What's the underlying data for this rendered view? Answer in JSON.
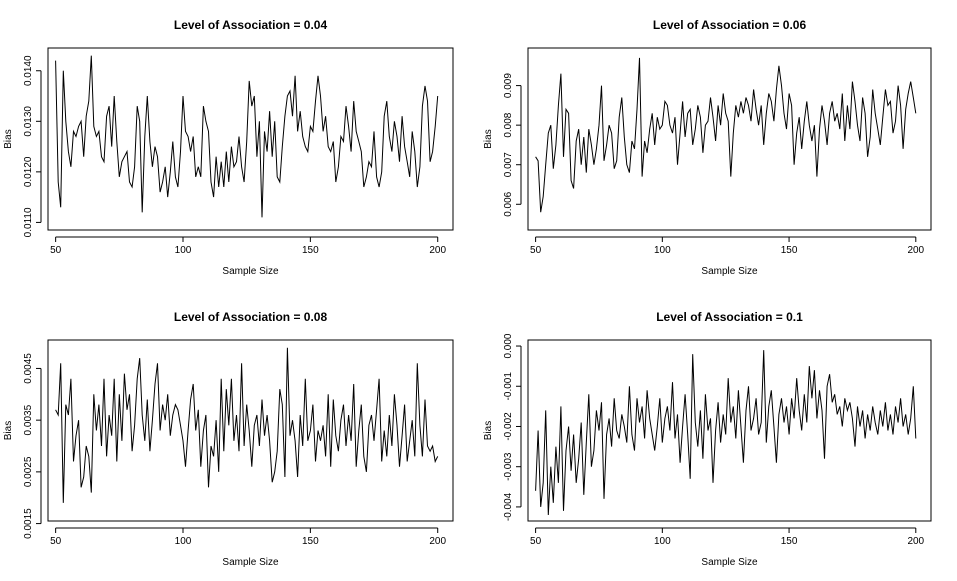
{
  "chart_data": [
    {
      "type": "line",
      "title": "Level of Association = 0.04",
      "xlabel": "Sample Size",
      "ylabel": "Bias",
      "xlim": [
        47,
        206
      ],
      "ylim": [
        0.01085,
        0.01445
      ],
      "xticks": [
        50,
        100,
        150,
        200
      ],
      "yticks": [
        0.011,
        0.012,
        0.013,
        0.014
      ],
      "ytick_labels": [
        "0.0110",
        "0.0120",
        "0.0130",
        "0.0140"
      ],
      "x": [
        50,
        51,
        52,
        53,
        54,
        55,
        56,
        57,
        58,
        59,
        60,
        61,
        62,
        63,
        64,
        65,
        66,
        67,
        68,
        69,
        70,
        71,
        72,
        73,
        74,
        75,
        76,
        77,
        78,
        79,
        80,
        81,
        82,
        83,
        84,
        85,
        86,
        87,
        88,
        89,
        90,
        91,
        92,
        93,
        94,
        95,
        96,
        97,
        98,
        99,
        100,
        101,
        102,
        103,
        104,
        105,
        106,
        107,
        108,
        109,
        110,
        111,
        112,
        113,
        114,
        115,
        116,
        117,
        118,
        119,
        120,
        121,
        122,
        123,
        124,
        125,
        126,
        127,
        128,
        129,
        130,
        131,
        132,
        133,
        134,
        135,
        136,
        137,
        138,
        139,
        140,
        141,
        142,
        143,
        144,
        145,
        146,
        147,
        148,
        149,
        150,
        151,
        152,
        153,
        154,
        155,
        156,
        157,
        158,
        159,
        160,
        161,
        162,
        163,
        164,
        165,
        166,
        167,
        168,
        169,
        170,
        171,
        172,
        173,
        174,
        175,
        176,
        177,
        178,
        179,
        180,
        181,
        182,
        183,
        184,
        185,
        186,
        187,
        188,
        189,
        190,
        191,
        192,
        193,
        194,
        195,
        196,
        197,
        198,
        199,
        200
      ],
      "y": [
        0.0142,
        0.0118,
        0.0113,
        0.014,
        0.013,
        0.0124,
        0.0121,
        0.0128,
        0.0127,
        0.0129,
        0.013,
        0.0123,
        0.0131,
        0.0134,
        0.0143,
        0.0129,
        0.0127,
        0.0128,
        0.0123,
        0.0122,
        0.0131,
        0.0133,
        0.0125,
        0.0135,
        0.0126,
        0.0119,
        0.0122,
        0.0123,
        0.0124,
        0.0118,
        0.0117,
        0.0121,
        0.0133,
        0.013,
        0.0112,
        0.0127,
        0.0135,
        0.0126,
        0.0121,
        0.0125,
        0.0123,
        0.0116,
        0.0118,
        0.0121,
        0.0115,
        0.012,
        0.0126,
        0.0119,
        0.0117,
        0.0124,
        0.0135,
        0.0128,
        0.0127,
        0.0124,
        0.0127,
        0.0119,
        0.0121,
        0.0119,
        0.0133,
        0.013,
        0.0128,
        0.0118,
        0.0115,
        0.0123,
        0.0117,
        0.0122,
        0.0117,
        0.0124,
        0.0118,
        0.0125,
        0.0121,
        0.0122,
        0.0127,
        0.0121,
        0.0118,
        0.0126,
        0.0138,
        0.0133,
        0.0135,
        0.0123,
        0.013,
        0.0111,
        0.0128,
        0.0124,
        0.0132,
        0.0123,
        0.013,
        0.0119,
        0.0118,
        0.0125,
        0.0131,
        0.0135,
        0.0136,
        0.0131,
        0.0139,
        0.0128,
        0.0132,
        0.0127,
        0.0125,
        0.0124,
        0.0129,
        0.0128,
        0.0134,
        0.0139,
        0.0135,
        0.0128,
        0.0131,
        0.0125,
        0.0124,
        0.0126,
        0.0118,
        0.0121,
        0.0127,
        0.0126,
        0.0133,
        0.0129,
        0.0124,
        0.0134,
        0.0128,
        0.0126,
        0.0124,
        0.0117,
        0.0119,
        0.0122,
        0.0121,
        0.0128,
        0.0119,
        0.0117,
        0.012,
        0.0131,
        0.0134,
        0.0127,
        0.0124,
        0.013,
        0.0127,
        0.0122,
        0.0131,
        0.0125,
        0.0122,
        0.0119,
        0.0128,
        0.0124,
        0.0117,
        0.0121,
        0.0133,
        0.0137,
        0.0134,
        0.0122,
        0.0124,
        0.0129,
        0.0135
      ]
    },
    {
      "type": "line",
      "title": "Level of Association = 0.06",
      "xlabel": "Sample Size",
      "ylabel": "Bias",
      "xlim": [
        47,
        206
      ],
      "ylim": [
        0.00535,
        0.00995
      ],
      "xticks": [
        50,
        100,
        150,
        200
      ],
      "yticks": [
        0.006,
        0.007,
        0.008,
        0.009
      ],
      "ytick_labels": [
        "0.006",
        "0.007",
        "0.008",
        "0.009"
      ],
      "x": [
        50,
        51,
        52,
        53,
        54,
        55,
        56,
        57,
        58,
        59,
        60,
        61,
        62,
        63,
        64,
        65,
        66,
        67,
        68,
        69,
        70,
        71,
        72,
        73,
        74,
        75,
        76,
        77,
        78,
        79,
        80,
        81,
        82,
        83,
        84,
        85,
        86,
        87,
        88,
        89,
        90,
        91,
        92,
        93,
        94,
        95,
        96,
        97,
        98,
        99,
        100,
        101,
        102,
        103,
        104,
        105,
        106,
        107,
        108,
        109,
        110,
        111,
        112,
        113,
        114,
        115,
        116,
        117,
        118,
        119,
        120,
        121,
        122,
        123,
        124,
        125,
        126,
        127,
        128,
        129,
        130,
        131,
        132,
        133,
        134,
        135,
        136,
        137,
        138,
        139,
        140,
        141,
        142,
        143,
        144,
        145,
        146,
        147,
        148,
        149,
        150,
        151,
        152,
        153,
        154,
        155,
        156,
        157,
        158,
        159,
        160,
        161,
        162,
        163,
        164,
        165,
        166,
        167,
        168,
        169,
        170,
        171,
        172,
        173,
        174,
        175,
        176,
        177,
        178,
        179,
        180,
        181,
        182,
        183,
        184,
        185,
        186,
        187,
        188,
        189,
        190,
        191,
        192,
        193,
        194,
        195,
        196,
        197,
        198,
        199,
        200
      ],
      "y": [
        0.0072,
        0.0071,
        0.0058,
        0.0062,
        0.007,
        0.0078,
        0.008,
        0.0069,
        0.0075,
        0.0085,
        0.0093,
        0.0072,
        0.0084,
        0.0083,
        0.0066,
        0.0064,
        0.0076,
        0.0079,
        0.007,
        0.0077,
        0.0068,
        0.0079,
        0.0075,
        0.007,
        0.0074,
        0.008,
        0.009,
        0.0071,
        0.0075,
        0.008,
        0.0078,
        0.0069,
        0.0071,
        0.0082,
        0.0087,
        0.0077,
        0.007,
        0.0068,
        0.0076,
        0.0074,
        0.0084,
        0.0097,
        0.0067,
        0.0076,
        0.0073,
        0.0079,
        0.0083,
        0.0075,
        0.0082,
        0.0079,
        0.008,
        0.0086,
        0.0085,
        0.008,
        0.0078,
        0.0082,
        0.007,
        0.0078,
        0.0086,
        0.0077,
        0.0083,
        0.0084,
        0.0075,
        0.0079,
        0.0085,
        0.0082,
        0.0073,
        0.008,
        0.0081,
        0.0087,
        0.0082,
        0.0076,
        0.0085,
        0.008,
        0.0088,
        0.0083,
        0.0081,
        0.0067,
        0.0078,
        0.0085,
        0.0082,
        0.0086,
        0.0083,
        0.0087,
        0.0085,
        0.0081,
        0.0089,
        0.0084,
        0.008,
        0.0085,
        0.0075,
        0.0083,
        0.0088,
        0.0086,
        0.0081,
        0.0089,
        0.0095,
        0.009,
        0.0083,
        0.0079,
        0.0088,
        0.0085,
        0.007,
        0.0078,
        0.0082,
        0.0074,
        0.0081,
        0.0086,
        0.008,
        0.0076,
        0.008,
        0.0067,
        0.0079,
        0.0085,
        0.0081,
        0.0075,
        0.0083,
        0.0086,
        0.0081,
        0.0083,
        0.0079,
        0.0088,
        0.0076,
        0.0085,
        0.0079,
        0.0091,
        0.0086,
        0.008,
        0.0076,
        0.0087,
        0.0083,
        0.0072,
        0.0077,
        0.0089,
        0.0083,
        0.0079,
        0.0075,
        0.0082,
        0.0089,
        0.0085,
        0.0086,
        0.0078,
        0.0081,
        0.009,
        0.0085,
        0.0074,
        0.0084,
        0.0088,
        0.0091,
        0.0087,
        0.0083
      ]
    },
    {
      "type": "line",
      "title": "Level of Association = 0.08",
      "xlabel": "Sample Size",
      "ylabel": "Bias",
      "xlim": [
        47,
        206
      ],
      "ylim": [
        0.00155,
        0.00505
      ],
      "xticks": [
        50,
        100,
        150,
        200
      ],
      "yticks": [
        0.0015,
        0.0025,
        0.0035,
        0.0045
      ],
      "ytick_labels": [
        "0.0015",
        "0.0025",
        "0.0035",
        "0.0045"
      ],
      "x": [
        50,
        51,
        52,
        53,
        54,
        55,
        56,
        57,
        58,
        59,
        60,
        61,
        62,
        63,
        64,
        65,
        66,
        67,
        68,
        69,
        70,
        71,
        72,
        73,
        74,
        75,
        76,
        77,
        78,
        79,
        80,
        81,
        82,
        83,
        84,
        85,
        86,
        87,
        88,
        89,
        90,
        91,
        92,
        93,
        94,
        95,
        96,
        97,
        98,
        99,
        100,
        101,
        102,
        103,
        104,
        105,
        106,
        107,
        108,
        109,
        110,
        111,
        112,
        113,
        114,
        115,
        116,
        117,
        118,
        119,
        120,
        121,
        122,
        123,
        124,
        125,
        126,
        127,
        128,
        129,
        130,
        131,
        132,
        133,
        134,
        135,
        136,
        137,
        138,
        139,
        140,
        141,
        142,
        143,
        144,
        145,
        146,
        147,
        148,
        149,
        150,
        151,
        152,
        153,
        154,
        155,
        156,
        157,
        158,
        159,
        160,
        161,
        162,
        163,
        164,
        165,
        166,
        167,
        168,
        169,
        170,
        171,
        172,
        173,
        174,
        175,
        176,
        177,
        178,
        179,
        180,
        181,
        182,
        183,
        184,
        185,
        186,
        187,
        188,
        189,
        190,
        191,
        192,
        193,
        194,
        195,
        196,
        197,
        198,
        199,
        200
      ],
      "y": [
        0.0037,
        0.0036,
        0.0046,
        0.0019,
        0.0038,
        0.0036,
        0.0043,
        0.0027,
        0.0032,
        0.0035,
        0.0022,
        0.0024,
        0.003,
        0.0028,
        0.0021,
        0.004,
        0.0033,
        0.0038,
        0.003,
        0.0043,
        0.0028,
        0.0036,
        0.0032,
        0.0043,
        0.0027,
        0.004,
        0.0031,
        0.0044,
        0.0037,
        0.004,
        0.0029,
        0.0034,
        0.0043,
        0.0047,
        0.0036,
        0.0031,
        0.0039,
        0.0029,
        0.0035,
        0.0042,
        0.0046,
        0.0033,
        0.0038,
        0.0035,
        0.004,
        0.0032,
        0.0036,
        0.0038,
        0.0037,
        0.0034,
        0.0031,
        0.0026,
        0.0033,
        0.0039,
        0.0042,
        0.0033,
        0.0037,
        0.0026,
        0.0033,
        0.0036,
        0.0022,
        0.003,
        0.0028,
        0.0035,
        0.0025,
        0.0043,
        0.0029,
        0.0041,
        0.0034,
        0.0043,
        0.0031,
        0.0036,
        0.0029,
        0.0046,
        0.003,
        0.0038,
        0.0033,
        0.0026,
        0.0034,
        0.0036,
        0.003,
        0.0039,
        0.0032,
        0.0036,
        0.0031,
        0.0023,
        0.0025,
        0.0029,
        0.0041,
        0.0038,
        0.0024,
        0.0049,
        0.0032,
        0.0035,
        0.0031,
        0.0024,
        0.0036,
        0.003,
        0.0043,
        0.0031,
        0.0033,
        0.0038,
        0.0027,
        0.0033,
        0.0031,
        0.0034,
        0.0028,
        0.004,
        0.0026,
        0.0039,
        0.0032,
        0.0029,
        0.0035,
        0.0038,
        0.003,
        0.0036,
        0.0031,
        0.0042,
        0.0026,
        0.0033,
        0.0038,
        0.0028,
        0.0025,
        0.0034,
        0.0036,
        0.0031,
        0.0037,
        0.0043,
        0.0027,
        0.0033,
        0.0028,
        0.0036,
        0.003,
        0.004,
        0.0034,
        0.0026,
        0.0032,
        0.0038,
        0.0027,
        0.0031,
        0.0035,
        0.0028,
        0.0046,
        0.0034,
        0.0028,
        0.0039,
        0.003,
        0.0029,
        0.003,
        0.0027,
        0.0028
      ]
    },
    {
      "type": "line",
      "title": "Level of Association = 0.1",
      "xlabel": "Sample Size",
      "ylabel": "Bias",
      "xlim": [
        47,
        206
      ],
      "ylim": [
        -0.00435,
        0.00015
      ],
      "xticks": [
        50,
        100,
        150,
        200
      ],
      "yticks": [
        -0.004,
        -0.003,
        -0.002,
        -0.001,
        0.0
      ],
      "ytick_labels": [
        "-0.004",
        "-0.003",
        "-0.002",
        "-0.001",
        "0.000"
      ],
      "x": [
        50,
        51,
        52,
        53,
        54,
        55,
        56,
        57,
        58,
        59,
        60,
        61,
        62,
        63,
        64,
        65,
        66,
        67,
        68,
        69,
        70,
        71,
        72,
        73,
        74,
        75,
        76,
        77,
        78,
        79,
        80,
        81,
        82,
        83,
        84,
        85,
        86,
        87,
        88,
        89,
        90,
        91,
        92,
        93,
        94,
        95,
        96,
        97,
        98,
        99,
        100,
        101,
        102,
        103,
        104,
        105,
        106,
        107,
        108,
        109,
        110,
        111,
        112,
        113,
        114,
        115,
        116,
        117,
        118,
        119,
        120,
        121,
        122,
        123,
        124,
        125,
        126,
        127,
        128,
        129,
        130,
        131,
        132,
        133,
        134,
        135,
        136,
        137,
        138,
        139,
        140,
        141,
        142,
        143,
        144,
        145,
        146,
        147,
        148,
        149,
        150,
        151,
        152,
        153,
        154,
        155,
        156,
        157,
        158,
        159,
        160,
        161,
        162,
        163,
        164,
        165,
        166,
        167,
        168,
        169,
        170,
        171,
        172,
        173,
        174,
        175,
        176,
        177,
        178,
        179,
        180,
        181,
        182,
        183,
        184,
        185,
        186,
        187,
        188,
        189,
        190,
        191,
        192,
        193,
        194,
        195,
        196,
        197,
        198,
        199,
        200
      ],
      "y": [
        -0.0036,
        -0.0021,
        -0.004,
        -0.0034,
        -0.0016,
        -0.0042,
        -0.003,
        -0.0039,
        -0.0025,
        -0.0034,
        -0.0015,
        -0.0041,
        -0.0026,
        -0.002,
        -0.0031,
        -0.0022,
        -0.0034,
        -0.0028,
        -0.0019,
        -0.0037,
        -0.0024,
        -0.0012,
        -0.003,
        -0.0026,
        -0.0016,
        -0.0021,
        -0.0014,
        -0.0038,
        -0.0022,
        -0.0018,
        -0.0025,
        -0.0013,
        -0.0021,
        -0.0023,
        -0.0017,
        -0.002,
        -0.0024,
        -0.001,
        -0.0022,
        -0.0026,
        -0.0013,
        -0.0019,
        -0.0015,
        -0.0023,
        -0.0011,
        -0.0018,
        -0.0022,
        -0.0026,
        -0.002,
        -0.0013,
        -0.0024,
        -0.0018,
        -0.0015,
        -0.0021,
        -0.0009,
        -0.0023,
        -0.0017,
        -0.0029,
        -0.002,
        -0.0012,
        -0.0022,
        -0.0033,
        -0.0002,
        -0.0019,
        -0.0025,
        -0.0016,
        -0.0028,
        -0.0012,
        -0.0021,
        -0.0018,
        -0.0034,
        -0.0021,
        -0.0014,
        -0.0024,
        -0.0017,
        -0.0022,
        -0.0008,
        -0.0019,
        -0.0015,
        -0.0023,
        -0.0011,
        -0.002,
        -0.0029,
        -0.0016,
        -0.001,
        -0.0021,
        -0.0018,
        -0.0013,
        -0.0022,
        -0.0019,
        -0.0001,
        -0.0024,
        -0.0015,
        -0.0011,
        -0.002,
        -0.0029,
        -0.0017,
        -0.0013,
        -0.0019,
        -0.0015,
        -0.0022,
        -0.0013,
        -0.0018,
        -0.0008,
        -0.0016,
        -0.0021,
        -0.0012,
        -0.0019,
        -0.0005,
        -0.0013,
        -0.0006,
        -0.0018,
        -0.0011,
        -0.0016,
        -0.0028,
        -0.001,
        -0.0007,
        -0.0014,
        -0.0012,
        -0.0017,
        -0.0015,
        -0.002,
        -0.0013,
        -0.0016,
        -0.0014,
        -0.0018,
        -0.0025,
        -0.0015,
        -0.002,
        -0.0016,
        -0.0023,
        -0.0017,
        -0.0021,
        -0.0015,
        -0.0019,
        -0.0022,
        -0.0016,
        -0.002,
        -0.0014,
        -0.0021,
        -0.0017,
        -0.0022,
        -0.0015,
        -0.0019,
        -0.0013,
        -0.002,
        -0.0017,
        -0.0022,
        -0.0018,
        -0.001,
        -0.0023
      ]
    }
  ]
}
